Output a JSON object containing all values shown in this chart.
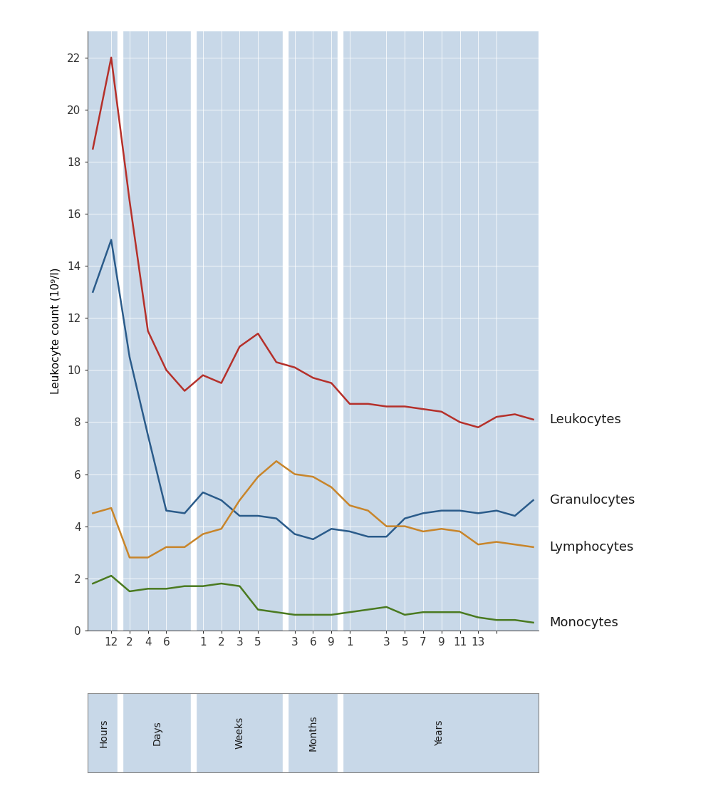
{
  "background_color": "#ffffff",
  "plot_bg_color": "#c8d8e8",
  "ylabel": "Leukocyte count (10⁹/l)",
  "ylim": [
    0,
    23
  ],
  "yticks": [
    0,
    2,
    4,
    6,
    8,
    10,
    12,
    14,
    16,
    18,
    20,
    22
  ],
  "period_labels": [
    "Hours",
    "Days",
    "Weeks",
    "Months",
    "Years"
  ],
  "line_colors": {
    "leukocytes": "#b5302a",
    "granulocytes": "#2a5b8a",
    "lymphocytes": "#c8852a",
    "monocytes": "#4a7a20"
  },
  "legend_labels": [
    "Leukocytes",
    "Granulocytes",
    "Lymphocytes",
    "Monocytes"
  ],
  "leukocytes": [
    18.5,
    22.0,
    16.5,
    11.5,
    10.0,
    9.2,
    9.8,
    9.5,
    10.9,
    11.4,
    10.3,
    10.1,
    9.7,
    9.5,
    8.7,
    8.7,
    8.6,
    8.6,
    8.5,
    8.4,
    8.0,
    7.8,
    8.2,
    8.3,
    8.1
  ],
  "granulocytes": [
    13.0,
    15.0,
    10.5,
    7.5,
    4.6,
    4.5,
    5.3,
    5.0,
    4.4,
    4.4,
    4.3,
    3.7,
    3.5,
    3.9,
    3.8,
    3.6,
    3.6,
    4.3,
    4.5,
    4.6,
    4.6,
    4.5,
    4.6,
    4.4,
    5.0
  ],
  "lymphocytes": [
    4.5,
    4.7,
    2.8,
    2.8,
    3.2,
    3.2,
    3.7,
    3.9,
    5.0,
    5.9,
    6.5,
    6.0,
    5.9,
    5.5,
    4.8,
    4.6,
    4.0,
    4.0,
    3.8,
    3.9,
    3.8,
    3.3,
    3.4,
    3.3,
    3.2
  ],
  "monocytes": [
    1.8,
    2.1,
    1.5,
    1.6,
    1.6,
    1.7,
    1.7,
    1.8,
    1.7,
    0.8,
    0.7,
    0.6,
    0.6,
    0.6,
    0.7,
    0.8,
    0.9,
    0.6,
    0.7,
    0.7,
    0.7,
    0.5,
    0.4,
    0.4,
    0.3
  ],
  "tick_fontsize": 11,
  "axis_fontsize": 11,
  "legend_fontsize": 13
}
